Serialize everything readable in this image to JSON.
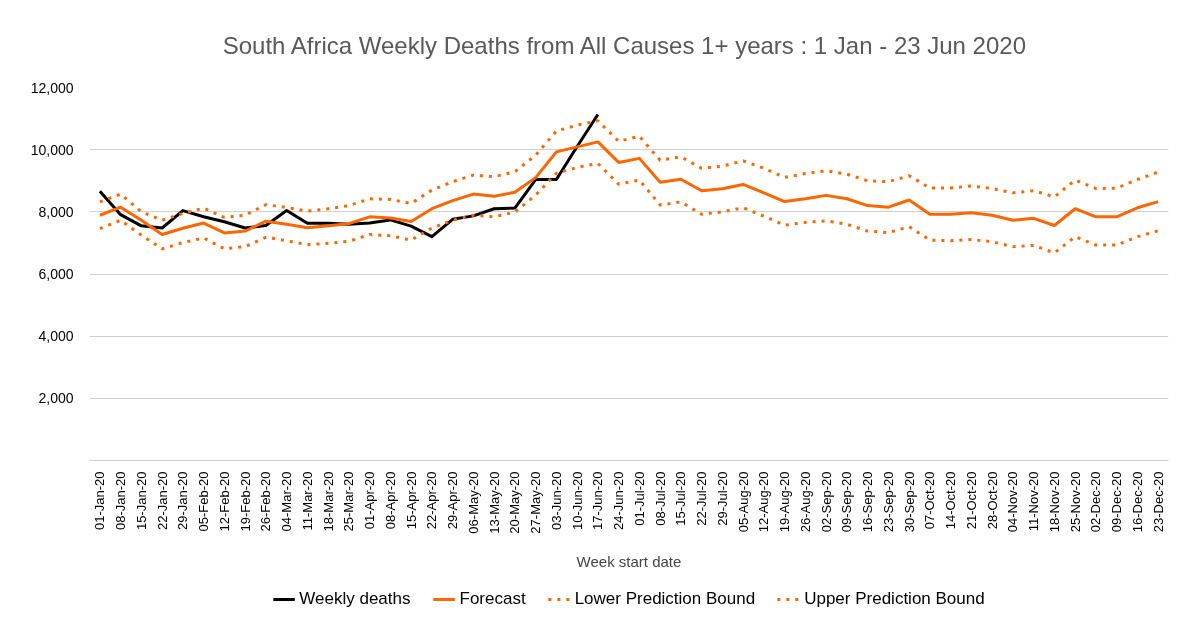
{
  "chart_data": {
    "type": "line",
    "title": "South Africa Weekly Deaths from All Causes 1+ years : 1 Jan  - 23 Jun 2020",
    "xlabel": "Week start date",
    "categories": [
      "01-Jan-20",
      "08-Jan-20",
      "15-Jan-20",
      "22-Jan-20",
      "29-Jan-20",
      "05-Feb-20",
      "12-Feb-20",
      "19-Feb-20",
      "26-Feb-20",
      "04-Mar-20",
      "11-Mar-20",
      "18-Mar-20",
      "25-Mar-20",
      "01-Apr-20",
      "08-Apr-20",
      "15-Apr-20",
      "22-Apr-20",
      "29-Apr-20",
      "06-May-20",
      "13-May-20",
      "20-May-20",
      "27-May-20",
      "03-Jun-20",
      "10-Jun-20",
      "17-Jun-20",
      "24-Jun-20",
      "01-Jul-20",
      "08-Jul-20",
      "15-Jul-20",
      "22-Jul-20",
      "29-Jul-20",
      "05-Aug-20",
      "12-Aug-20",
      "19-Aug-20",
      "26-Aug-20",
      "02-Sep-20",
      "09-Sep-20",
      "16-Sep-20",
      "23-Sep-20",
      "30-Sep-20",
      "07-Oct-20",
      "14-Oct-20",
      "21-Oct-20",
      "28-Oct-20",
      "04-Nov-20",
      "11-Nov-20",
      "18-Nov-20",
      "25-Nov-20",
      "02-Dec-20",
      "09-Dec-20",
      "16-Dec-20",
      "23-Dec-20"
    ],
    "series": [
      {
        "name": "Weekly deaths",
        "color": "#000000",
        "line_style": "solid",
        "values": [
          8660,
          7910,
          7550,
          7480,
          8040,
          7840,
          7680,
          7480,
          7560,
          8040,
          7630,
          7630,
          7600,
          7640,
          7740,
          7540,
          7200,
          7760,
          7870,
          8100,
          8120,
          9040,
          9040,
          10100,
          11130,
          null,
          null,
          null,
          null,
          null,
          null,
          null,
          null,
          null,
          null,
          null,
          null,
          null,
          null,
          null,
          null,
          null,
          null,
          null,
          null,
          null,
          null,
          null,
          null,
          null,
          null,
          null
        ]
      },
      {
        "name": "Forecast",
        "color": "#ff6600",
        "line_style": "solid",
        "values": [
          7890,
          8150,
          7730,
          7270,
          7470,
          7640,
          7320,
          7380,
          7700,
          7600,
          7490,
          7550,
          7620,
          7840,
          7800,
          7690,
          8100,
          8360,
          8570,
          8500,
          8630,
          9100,
          9930,
          10090,
          10250,
          9590,
          9720,
          8950,
          9050,
          8680,
          8740,
          8880,
          8610,
          8330,
          8420,
          8530,
          8420,
          8200,
          8150,
          8380,
          7920,
          7920,
          7970,
          7890,
          7730,
          7790,
          7560,
          8100,
          7840,
          7840,
          8130,
          8330
        ]
      },
      {
        "name": "Lower Prediction Bound",
        "color": "#ff6600",
        "line_style": "dotted",
        "values": [
          7460,
          7730,
          7250,
          6810,
          7010,
          7160,
          6810,
          6880,
          7180,
          7070,
          6940,
          6990,
          7050,
          7270,
          7230,
          7090,
          7480,
          7730,
          7890,
          7840,
          7990,
          8540,
          9240,
          9430,
          9560,
          8890,
          9020,
          8220,
          8320,
          7920,
          8000,
          8130,
          7860,
          7570,
          7660,
          7710,
          7600,
          7380,
          7330,
          7520,
          7090,
          7070,
          7110,
          7040,
          6880,
          6920,
          6680,
          7200,
          6930,
          6930,
          7200,
          7390
        ]
      },
      {
        "name": "Upper Prediction Bound",
        "color": "#ff6600",
        "line_style": "dotted",
        "values": [
          8320,
          8570,
          8000,
          7730,
          7950,
          8120,
          7820,
          7890,
          8230,
          8140,
          8020,
          8100,
          8200,
          8420,
          8400,
          8270,
          8700,
          8970,
          9180,
          9130,
          9290,
          9820,
          10600,
          10790,
          10930,
          10270,
          10430,
          9660,
          9770,
          9400,
          9470,
          9640,
          9400,
          9110,
          9230,
          9320,
          9210,
          9000,
          8970,
          9160,
          8770,
          8770,
          8830,
          8750,
          8610,
          8680,
          8480,
          9020,
          8750,
          8760,
          9040,
          9280
        ]
      }
    ],
    "ylim": [
      0,
      12000
    ],
    "yticks": [
      {
        "value": 2000,
        "label": "2,000"
      },
      {
        "value": 4000,
        "label": "4,000"
      },
      {
        "value": 6000,
        "label": "6,000"
      },
      {
        "value": 8000,
        "label": "8,000"
      },
      {
        "value": 10000,
        "label": "10,000"
      },
      {
        "value": 12000,
        "label": "12,000"
      }
    ],
    "grid": "y",
    "legend": "bottom"
  }
}
